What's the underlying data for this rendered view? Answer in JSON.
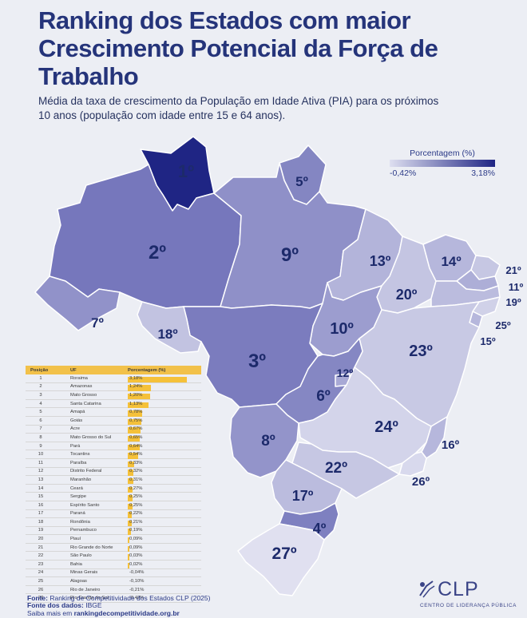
{
  "title": "Ranking dos Estados com maior Crescimento Potencial da Força de Trabalho",
  "subtitle": "Média da taxa de crescimento da População em Idade Ativa (PIA) para os próximos 10 anos (população com idade entre 15 e 64 anos).",
  "legend": {
    "title": "Porcentagem (%)",
    "min": "-0,42%",
    "max": "3,18%",
    "min_color": "#dedff0",
    "max_color": "#1f2584"
  },
  "map_labels": [
    {
      "id": "RR",
      "text": "1º"
    },
    {
      "id": "AM",
      "text": "2º"
    },
    {
      "id": "MT",
      "text": "3º"
    },
    {
      "id": "SC",
      "text": "4º"
    },
    {
      "id": "AP",
      "text": "5º"
    },
    {
      "id": "GO",
      "text": "6º"
    },
    {
      "id": "AC",
      "text": "7º"
    },
    {
      "id": "MS",
      "text": "8º"
    },
    {
      "id": "PA",
      "text": "9º"
    },
    {
      "id": "TO",
      "text": "10º"
    },
    {
      "id": "PB",
      "text": "11º"
    },
    {
      "id": "DF",
      "text": "12º"
    },
    {
      "id": "MA",
      "text": "13º"
    },
    {
      "id": "CE",
      "text": "14º"
    },
    {
      "id": "SE",
      "text": "15º"
    },
    {
      "id": "ES",
      "text": "16º"
    },
    {
      "id": "PR",
      "text": "17º"
    },
    {
      "id": "RO",
      "text": "18º"
    },
    {
      "id": "PE",
      "text": "19º"
    },
    {
      "id": "PI",
      "text": "20º"
    },
    {
      "id": "RN",
      "text": "21º"
    },
    {
      "id": "SP",
      "text": "22º"
    },
    {
      "id": "BA",
      "text": "23º"
    },
    {
      "id": "MG",
      "text": "24º"
    },
    {
      "id": "AL",
      "text": "25º"
    },
    {
      "id": "RJ",
      "text": "26º"
    },
    {
      "id": "RS",
      "text": "27º"
    }
  ],
  "table": {
    "headers": {
      "position": "Posição",
      "uf": "UF",
      "percent": "Porcentagem (%)"
    },
    "rows": [
      {
        "pos": "1",
        "uf": "Roraima",
        "pct": "3,18%",
        "value": 3.18
      },
      {
        "pos": "2",
        "uf": "Amazonas",
        "pct": "1,24%",
        "value": 1.24
      },
      {
        "pos": "3",
        "uf": "Mato Grosso",
        "pct": "1,20%",
        "value": 1.2
      },
      {
        "pos": "4",
        "uf": "Santa Catarina",
        "pct": "1,13%",
        "value": 1.13
      },
      {
        "pos": "5",
        "uf": "Amapá",
        "pct": "0,78%",
        "value": 0.78
      },
      {
        "pos": "6",
        "uf": "Goiás",
        "pct": "0,75%",
        "value": 0.75
      },
      {
        "pos": "7",
        "uf": "Acre",
        "pct": "0,67%",
        "value": 0.67
      },
      {
        "pos": "8",
        "uf": "Mato Grosso do Sul",
        "pct": "0,65%",
        "value": 0.65
      },
      {
        "pos": "9",
        "uf": "Pará",
        "pct": "0,64%",
        "value": 0.64
      },
      {
        "pos": "10",
        "uf": "Tocantins",
        "pct": "0,54%",
        "value": 0.54
      },
      {
        "pos": "11",
        "uf": "Paraíba",
        "pct": "0,33%",
        "value": 0.33
      },
      {
        "pos": "12",
        "uf": "Distrito Federal",
        "pct": "0,32%",
        "value": 0.32
      },
      {
        "pos": "13",
        "uf": "Maranhão",
        "pct": "0,31%",
        "value": 0.31
      },
      {
        "pos": "14",
        "uf": "Ceará",
        "pct": "0,27%",
        "value": 0.27
      },
      {
        "pos": "15",
        "uf": "Sergipe",
        "pct": "0,25%",
        "value": 0.25
      },
      {
        "pos": "16",
        "uf": "Espírito Santo",
        "pct": "0,25%",
        "value": 0.25
      },
      {
        "pos": "17",
        "uf": "Paraná",
        "pct": "0,22%",
        "value": 0.22
      },
      {
        "pos": "18",
        "uf": "Rondônia",
        "pct": "0,21%",
        "value": 0.21
      },
      {
        "pos": "19",
        "uf": "Pernambuco",
        "pct": "0,19%",
        "value": 0.19
      },
      {
        "pos": "20",
        "uf": "Piauí",
        "pct": "0,09%",
        "value": 0.09
      },
      {
        "pos": "21",
        "uf": "Rio Grande do Norte",
        "pct": "0,09%",
        "value": 0.09
      },
      {
        "pos": "22",
        "uf": "São Paulo",
        "pct": "0,03%",
        "value": 0.03
      },
      {
        "pos": "23",
        "uf": "Bahia",
        "pct": "0,02%",
        "value": 0.02
      },
      {
        "pos": "24",
        "uf": "Minas Gerais",
        "pct": "-0,04%",
        "value": -0.04
      },
      {
        "pos": "25",
        "uf": "Alagoas",
        "pct": "-0,10%",
        "value": -0.1
      },
      {
        "pos": "26",
        "uf": "Rio de Janeiro",
        "pct": "-0,21%",
        "value": -0.21
      },
      {
        "pos": "27",
        "uf": "Rio Grande do Sul",
        "pct": "-0,42%",
        "value": -0.42
      }
    ]
  },
  "sources": {
    "fonte_label": "Fonte:",
    "fonte_text": "Ranking de Competitividade dos Estados CLP (2025)",
    "fonte_dados_label": "Fonte dos dados:",
    "fonte_dados_text": "IBGE",
    "saiba_text": "Saiba mais em",
    "saiba_link": "rankingdecompetitividade.org.br"
  },
  "logo": {
    "name": "CLP",
    "subtitle": "CENTRO DE LIDERANÇA PÚBLICA"
  }
}
